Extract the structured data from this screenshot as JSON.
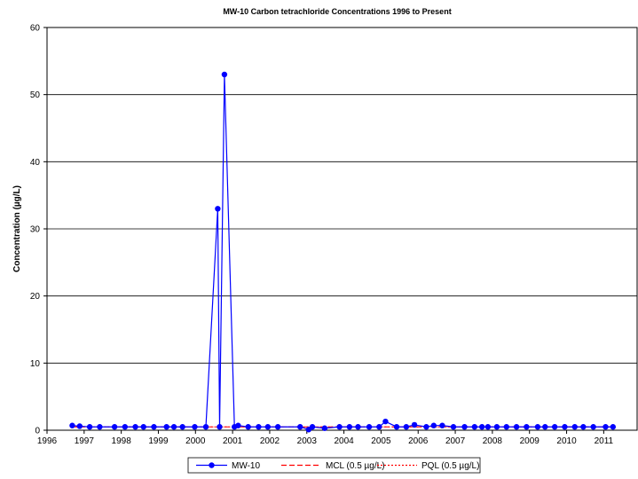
{
  "chart_data": {
    "type": "line",
    "title": "MW-10 Carbon tetrachloride  Concentrations 1996 to Present",
    "xlabel": "",
    "ylabel": "Concentration  (µg/L)",
    "xlim": [
      1996,
      2011.9
    ],
    "ylim": [
      0,
      60
    ],
    "x_ticks": [
      1996,
      1997,
      1998,
      1999,
      2000,
      2001,
      2002,
      2003,
      2004,
      2005,
      2006,
      2007,
      2008,
      2009,
      2010,
      2011
    ],
    "y_ticks": [
      0,
      10,
      20,
      30,
      40,
      50,
      60
    ],
    "grid": "horizontal",
    "legend_position": "bottom",
    "series": [
      {
        "name": "MW-10",
        "style": "solid line with circle markers",
        "color": "#0000ff",
        "x": [
          1996.68,
          1996.88,
          1997.15,
          1997.42,
          1997.82,
          1998.1,
          1998.38,
          1998.6,
          1998.88,
          1999.22,
          1999.42,
          1999.65,
          1999.98,
          2000.28,
          2000.6,
          2000.65,
          2000.78,
          2001.05,
          2001.15,
          2001.42,
          2001.7,
          2001.95,
          2002.22,
          2002.82,
          2003.05,
          2003.15,
          2003.48,
          2003.88,
          2004.15,
          2004.38,
          2004.68,
          2004.95,
          2005.12,
          2005.42,
          2005.68,
          2005.9,
          2006.22,
          2006.42,
          2006.65,
          2006.95,
          2007.25,
          2007.52,
          2007.72,
          2007.88,
          2008.12,
          2008.38,
          2008.65,
          2008.92,
          2009.22,
          2009.42,
          2009.68,
          2009.95,
          2010.22,
          2010.45,
          2010.72,
          2011.05,
          2011.25
        ],
        "y": [
          0.7,
          0.6,
          0.5,
          0.5,
          0.5,
          0.5,
          0.5,
          0.5,
          0.5,
          0.5,
          0.5,
          0.5,
          0.5,
          0.5,
          33,
          0.5,
          53,
          0.5,
          0.7,
          0.5,
          0.5,
          0.5,
          0.5,
          0.5,
          0.1,
          0.5,
          0.3,
          0.5,
          0.5,
          0.5,
          0.5,
          0.5,
          1.3,
          0.5,
          0.5,
          0.8,
          0.5,
          0.7,
          0.7,
          0.5,
          0.5,
          0.5,
          0.5,
          0.5,
          0.5,
          0.5,
          0.5,
          0.5,
          0.5,
          0.5,
          0.5,
          0.5,
          0.5,
          0.5,
          0.5,
          0.5,
          0.5
        ]
      },
      {
        "name": "MCL (0.5 µg/L)",
        "style": "dashed",
        "color": "#ff0000",
        "x": [
          1996.68,
          2011.25
        ],
        "y": [
          0.5,
          0.5
        ]
      },
      {
        "name": "PQL (0.5 µg/L)",
        "style": "dotted",
        "color": "#ff0000",
        "x": [
          1996.68,
          2011.25
        ],
        "y": [
          0.5,
          0.5
        ]
      }
    ]
  }
}
